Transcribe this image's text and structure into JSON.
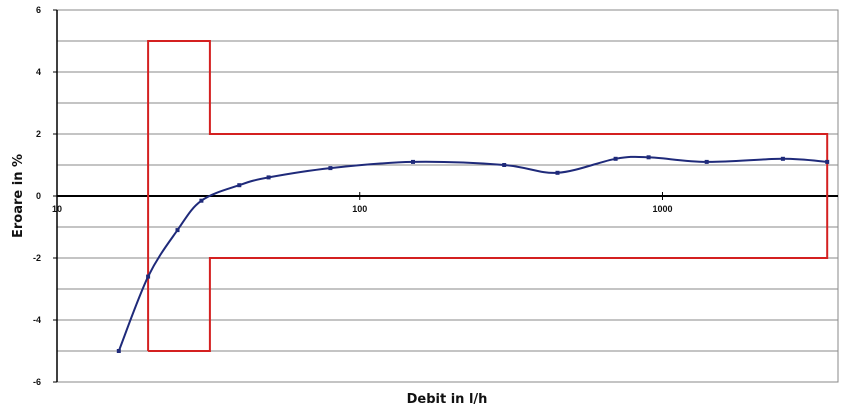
{
  "chart_data": {
    "type": "line",
    "title": "",
    "xlabel": "Debit in l/h",
    "ylabel": "Eroare in %",
    "x_scale": "log",
    "xlim": [
      10,
      3800
    ],
    "ylim": [
      -6,
      6
    ],
    "x_ticks": [
      {
        "v": 10,
        "label": "10"
      },
      {
        "v": 100,
        "label": "100"
      },
      {
        "v": 1000,
        "label": "1000"
      }
    ],
    "y_ticks": [
      {
        "v": 6,
        "label": "6"
      },
      {
        "v": 4,
        "label": "4"
      },
      {
        "v": 2,
        "label": "2"
      },
      {
        "v": 0,
        "label": "0"
      },
      {
        "v": -2,
        "label": "-2"
      },
      {
        "v": -4,
        "label": "-4"
      },
      {
        "v": -6,
        "label": "-6"
      }
    ],
    "grid": "horizontal",
    "grid_step": 1,
    "series": [
      {
        "color": "#1f2a7a",
        "x": [
          16,
          20,
          25,
          30,
          40,
          50,
          80,
          150,
          300,
          450,
          700,
          900,
          1400,
          2500,
          3500
        ],
        "y": [
          -5.0,
          -2.6,
          -1.1,
          -0.15,
          0.35,
          0.6,
          0.9,
          1.1,
          1.0,
          0.75,
          1.2,
          1.25,
          1.1,
          1.2,
          1.1
        ]
      }
    ],
    "limit_envelope": {
      "color": "#d42020",
      "x": [
        20,
        20,
        32,
        32,
        3500,
        3500,
        32,
        32,
        20
      ],
      "y": [
        -5,
        5,
        5,
        2,
        2,
        -2,
        -2,
        -5,
        -5
      ]
    }
  }
}
